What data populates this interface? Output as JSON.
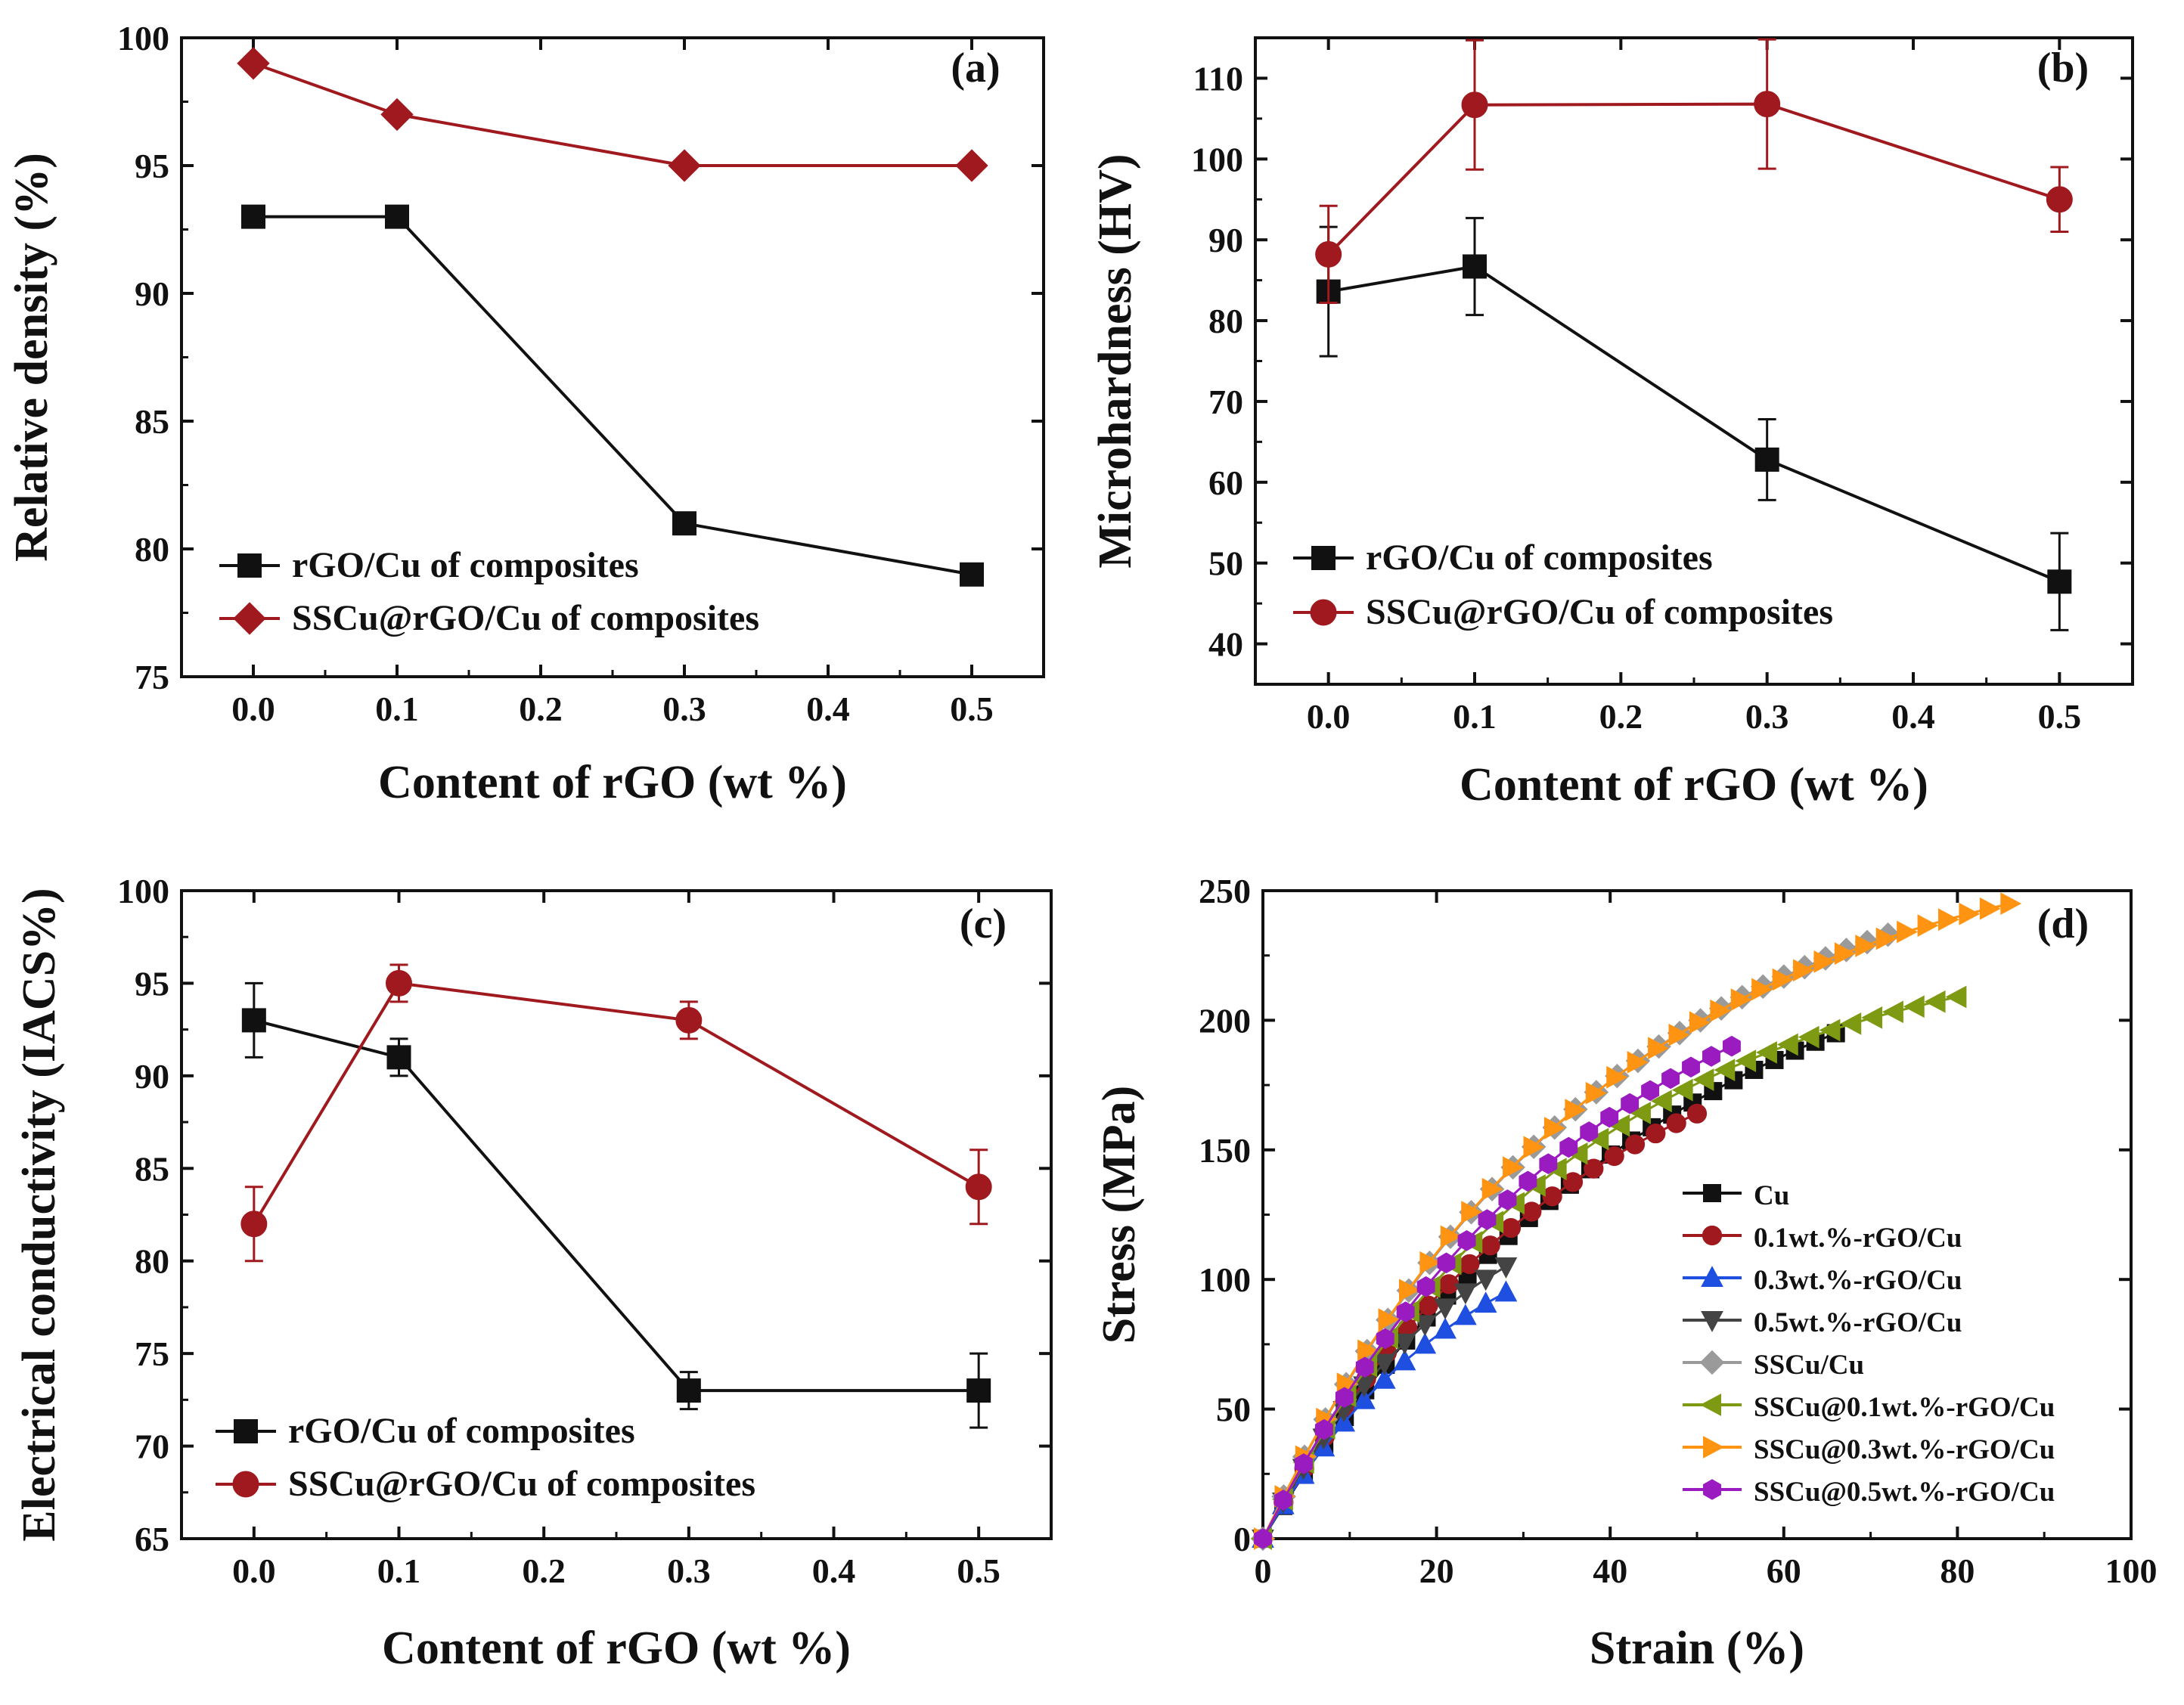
{
  "chart_data": [
    {
      "id": "a",
      "type": "line",
      "panel_label": "(a)",
      "xlabel": "Content of rGO (wt %)",
      "ylabel": "Relative density (%)",
      "xlim": [
        -0.05,
        0.55
      ],
      "ylim": [
        75,
        100
      ],
      "xticks": [
        0.0,
        0.1,
        0.2,
        0.3,
        0.4,
        0.5
      ],
      "xtick_labels": [
        "0.0",
        "0.1",
        "0.2",
        "0.3",
        "0.4",
        "0.5"
      ],
      "yticks": [
        75,
        80,
        85,
        90,
        95,
        100
      ],
      "ytick_labels": [
        "75",
        "80",
        "85",
        "90",
        "95",
        "100"
      ],
      "legend_position": "bottom-left",
      "series": [
        {
          "name": "rGO/Cu of composites",
          "color": "#111111",
          "marker": "square",
          "x": [
            0.0,
            0.1,
            0.3,
            0.5
          ],
          "values": [
            93,
            93,
            81,
            79
          ]
        },
        {
          "name": "SSCu@rGO/Cu of composites",
          "color": "#a0191e",
          "marker": "diamond",
          "x": [
            0.0,
            0.1,
            0.3,
            0.5
          ],
          "values": [
            99,
            97,
            95,
            95
          ]
        }
      ]
    },
    {
      "id": "b",
      "type": "line",
      "panel_label": "(b)",
      "xlabel": "Content of rGO (wt %)",
      "ylabel": "Microhardness (HV)",
      "xlim": [
        -0.05,
        0.55
      ],
      "ylim": [
        35,
        115
      ],
      "xticks": [
        0.0,
        0.1,
        0.2,
        0.3,
        0.4,
        0.5
      ],
      "xtick_labels": [
        "0.0",
        "0.1",
        "0.2",
        "0.3",
        "0.4",
        "0.5"
      ],
      "yticks": [
        40,
        50,
        60,
        70,
        80,
        90,
        100,
        110
      ],
      "ytick_labels": [
        "40",
        "50",
        "60",
        "70",
        "80",
        "90",
        "100",
        "110"
      ],
      "legend_position": "bottom-left",
      "series": [
        {
          "name": "rGO/Cu of composites",
          "color": "#111111",
          "marker": "square",
          "x": [
            0.0,
            0.1,
            0.3,
            0.5
          ],
          "values": [
            83.6,
            86.7,
            62.8,
            47.7
          ],
          "errors": [
            8.0,
            6.0,
            5.0,
            6.0
          ]
        },
        {
          "name": "SSCu@rGO/Cu of composites",
          "color": "#a0191e",
          "marker": "circle",
          "x": [
            0.0,
            0.1,
            0.3,
            0.5
          ],
          "values": [
            88.2,
            106.7,
            106.8,
            95.0
          ],
          "errors": [
            6.0,
            8.0,
            8.0,
            4.0
          ]
        }
      ]
    },
    {
      "id": "c",
      "type": "line",
      "panel_label": "(c)",
      "xlabel": "Content of rGO (wt %)",
      "ylabel": "Electrical conductivity (IACS%)",
      "xlim": [
        -0.05,
        0.55
      ],
      "ylim": [
        65,
        100
      ],
      "xticks": [
        0.0,
        0.1,
        0.2,
        0.3,
        0.4,
        0.5
      ],
      "xtick_labels": [
        "0.0",
        "0.1",
        "0.2",
        "0.3",
        "0.4",
        "0.5"
      ],
      "yticks": [
        65,
        70,
        75,
        80,
        85,
        90,
        95,
        100
      ],
      "ytick_labels": [
        "65",
        "70",
        "75",
        "80",
        "85",
        "90",
        "95",
        "100"
      ],
      "legend_position": "bottom-left",
      "series": [
        {
          "name": "rGO/Cu of composites",
          "color": "#111111",
          "marker": "square",
          "x": [
            0.0,
            0.1,
            0.3,
            0.5
          ],
          "values": [
            93,
            91,
            73,
            73
          ],
          "errors": [
            2,
            1,
            1,
            2
          ]
        },
        {
          "name": "SSCu@rGO/Cu of composites",
          "color": "#a0191e",
          "marker": "circle",
          "x": [
            0.0,
            0.1,
            0.3,
            0.5
          ],
          "values": [
            82,
            95,
            93,
            84
          ],
          "errors": [
            2,
            1,
            1,
            2
          ]
        }
      ]
    },
    {
      "id": "d",
      "type": "line",
      "panel_label": "(d)",
      "xlabel": "Strain (%)",
      "ylabel": "Stress (MPa)",
      "xlim": [
        0,
        100
      ],
      "ylim": [
        0,
        250
      ],
      "xticks": [
        0,
        20,
        40,
        60,
        80,
        100
      ],
      "xtick_labels": [
        "0",
        "20",
        "40",
        "60",
        "80",
        "100"
      ],
      "yticks": [
        0,
        50,
        100,
        150,
        200,
        250
      ],
      "ytick_labels": [
        "0",
        "50",
        "100",
        "150",
        "200",
        "250"
      ],
      "legend_position": "center-right",
      "series": [
        {
          "name": "Cu",
          "color": "#111111",
          "marker": "square",
          "max_strain": 66,
          "max_stress": 195,
          "curvature": 1.4
        },
        {
          "name": "0.1wt.%-rGO/Cu",
          "color": "#a0191e",
          "marker": "circle",
          "max_strain": 50,
          "max_stress": 164,
          "curvature": 1.4
        },
        {
          "name": "0.3wt.%-rGO/Cu",
          "color": "#1f4fe0",
          "marker": "triangle-up",
          "max_strain": 28,
          "max_stress": 95,
          "curvature": 1.2
        },
        {
          "name": "0.5wt.%-rGO/Cu",
          "color": "#444444",
          "marker": "triangle-down",
          "max_strain": 28,
          "max_stress": 105,
          "curvature": 1.2
        },
        {
          "name": "SSCu/Cu",
          "color": "#9a9a9a",
          "marker": "diamond",
          "max_strain": 72,
          "max_stress": 233,
          "curvature": 1.8
        },
        {
          "name": "SSCu@0.1wt.%-rGO/Cu",
          "color": "#7d9a12",
          "marker": "triangle-left",
          "max_strain": 80,
          "max_stress": 209,
          "curvature": 2.2
        },
        {
          "name": "SSCu@0.3wt.%-rGO/Cu",
          "color": "#ff9412",
          "marker": "triangle-right",
          "max_strain": 86,
          "max_stress": 245,
          "curvature": 2.2
        },
        {
          "name": "SSCu@0.5wt.%-rGO/Cu",
          "color": "#9a1bbf",
          "marker": "hexagon",
          "max_strain": 54,
          "max_stress": 190,
          "curvature": 1.4
        }
      ]
    }
  ]
}
